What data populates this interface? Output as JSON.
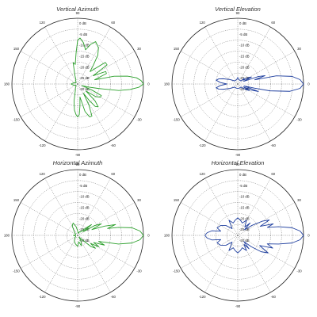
{
  "chart_data": [
    {
      "type": "polar",
      "title": "Vertical Azimuth",
      "color": "#2ca02c",
      "angle_ticks": [
        "90",
        "60",
        "30",
        "0",
        "-30",
        "-60",
        "-90",
        "-120",
        "-150",
        "180",
        "150",
        "120"
      ],
      "radial_ticks": [
        "0 dB",
        "-5 dB",
        "-10 dB",
        "-15 dB",
        "-20 dB",
        "-25 dB",
        "-30 dB"
      ],
      "rlim": [
        -30,
        0
      ],
      "grid": true,
      "series": [
        {
          "angle": [
            0,
            3,
            6,
            9,
            12,
            14,
            20,
            24,
            28,
            33,
            38,
            45,
            50,
            55,
            60,
            67,
            72,
            77,
            82,
            87,
            90,
            93,
            97,
            102,
            108,
            112,
            120,
            135,
            150,
            165,
            180,
            195,
            210,
            225,
            240,
            250,
            258,
            263,
            267,
            270,
            273,
            276,
            280,
            285,
            290,
            294,
            298,
            302,
            305,
            308,
            312,
            316,
            320,
            325,
            330,
            334,
            337,
            340,
            344,
            348,
            351,
            354,
            357,
            360
          ],
          "value": [
            0,
            -1,
            -3,
            -7,
            -13,
            -22,
            -16,
            -16,
            -22,
            -14,
            -14,
            -22,
            -19,
            -14,
            -11,
            -9,
            -11,
            -14,
            -11,
            -9,
            -10,
            -16,
            -21,
            -20,
            -26,
            -28,
            -28,
            -29,
            -29,
            -28,
            -27,
            -28,
            -29,
            -29,
            -28,
            -27,
            -22,
            -18,
            -16,
            -15,
            -16,
            -20,
            -24,
            -17,
            -14,
            -14,
            -19,
            -25,
            -21,
            -17,
            -16,
            -19,
            -25,
            -20,
            -18,
            -18,
            -23,
            -28,
            -25,
            -20,
            -11,
            -6,
            -2,
            0
          ]
        }
      ]
    },
    {
      "type": "polar",
      "title": "Vertical Elevation",
      "color": "#1f3f9f",
      "angle_ticks": [
        "90",
        "60",
        "30",
        "0",
        "-30",
        "-60",
        "-90",
        "-120",
        "-150",
        "180",
        "150",
        "120"
      ],
      "radial_ticks": [
        "0 dB",
        "-5 dB",
        "-10 dB",
        "-15 dB",
        "-20 dB",
        "-25 dB",
        "-30 dB"
      ],
      "rlim": [
        -30,
        0
      ],
      "grid": true,
      "series": [
        {
          "angle": [
            0,
            4,
            8,
            12,
            14,
            17,
            20,
            24,
            27,
            30,
            35,
            40,
            45,
            60,
            75,
            90,
            105,
            120,
            135,
            150,
            160,
            165,
            170,
            175,
            180,
            185,
            190,
            195,
            200,
            210,
            225,
            240,
            255,
            270,
            285,
            300,
            315,
            325,
            330,
            333,
            336,
            340,
            343,
            346,
            348,
            352,
            356,
            360
          ],
          "value": [
            0,
            -1.5,
            -5,
            -12,
            -22,
            -17,
            -20,
            -27,
            -23,
            -24,
            -27,
            -26,
            -28,
            -28,
            -28,
            -27,
            -28,
            -28,
            -28,
            -26,
            -23,
            -21,
            -20,
            -22,
            -25,
            -22,
            -20,
            -21,
            -23,
            -26,
            -28,
            -28,
            -28,
            -28,
            -28,
            -28,
            -28,
            -26,
            -24,
            -27,
            -23,
            -20,
            -27,
            -22,
            -15,
            -6,
            -1.5,
            0
          ]
        }
      ]
    },
    {
      "type": "polar",
      "title": "Horizontal Azimuth",
      "color": "#2ca02c",
      "angle_ticks": [
        "90",
        "60",
        "30",
        "0",
        "-30",
        "-60",
        "-90",
        "-120",
        "-150",
        "180",
        "150",
        "120"
      ],
      "radial_ticks": [
        "0 dB",
        "-5 dB",
        "-10 dB",
        "-15 dB",
        "-20 dB",
        "-25 dB",
        "-30 dB"
      ],
      "rlim": [
        -30,
        0
      ],
      "grid": true,
      "series": [
        {
          "angle": [
            0,
            4,
            8,
            11,
            13,
            16,
            19,
            22,
            26,
            30,
            34,
            38,
            42,
            50,
            60,
            75,
            90,
            100,
            110,
            120,
            135,
            150,
            165,
            180,
            195,
            210,
            225,
            240,
            255,
            270,
            280,
            290,
            300,
            310,
            316,
            320,
            324,
            328,
            332,
            336,
            340,
            344,
            348,
            352,
            356,
            360
          ],
          "value": [
            0,
            -1.5,
            -5,
            -11,
            -16,
            -12,
            -17,
            -23,
            -18,
            -21,
            -27,
            -22,
            -25,
            -28,
            -28,
            -29,
            -28,
            -26,
            -24,
            -25,
            -28,
            -29,
            -29,
            -28,
            -29,
            -29,
            -28,
            -27,
            -26,
            -25,
            -27,
            -25,
            -27,
            -29,
            -27,
            -22,
            -20,
            -23,
            -19,
            -22,
            -17,
            -20,
            -11,
            -5,
            -1.5,
            0
          ]
        }
      ]
    },
    {
      "type": "polar",
      "title": "Horizontal Elevation",
      "color": "#1f3f9f",
      "angle_ticks": [
        "90",
        "60",
        "30",
        "0",
        "-30",
        "-60",
        "-90",
        "-120",
        "-150",
        "180",
        "150",
        "120"
      ],
      "radial_ticks": [
        "0 dB",
        "-5 dB",
        "-10 dB",
        "-15 dB",
        "-20 dB",
        "-25 dB",
        "-30 dB"
      ],
      "rlim": [
        -30,
        0
      ],
      "grid": true,
      "series": [
        {
          "angle": [
            0,
            4,
            8,
            12,
            15,
            18,
            22,
            26,
            30,
            35,
            40,
            45,
            50,
            60,
            70,
            80,
            90,
            100,
            110,
            120,
            130,
            140,
            150,
            160,
            166,
            170,
            175,
            180,
            185,
            190,
            194,
            200,
            210,
            220,
            230,
            240,
            250,
            260,
            270,
            280,
            290,
            300,
            305,
            310,
            315,
            320,
            325,
            330,
            335,
            340,
            344,
            348,
            352,
            356,
            360
          ],
          "value": [
            0,
            -1.5,
            -5,
            -11,
            -16,
            -13,
            -19,
            -14,
            -17,
            -22,
            -26,
            -22,
            -25,
            -22,
            -24,
            -23,
            -22,
            -23,
            -24,
            -22,
            -26,
            -23,
            -21,
            -20,
            -22,
            -18,
            -16,
            -15,
            -16,
            -18,
            -22,
            -20,
            -21,
            -23,
            -26,
            -22,
            -24,
            -23,
            -22,
            -23,
            -24,
            -22,
            -25,
            -22,
            -26,
            -22,
            -17,
            -14,
            -19,
            -13,
            -16,
            -11,
            -5,
            -1.5,
            0
          ]
        }
      ]
    }
  ]
}
